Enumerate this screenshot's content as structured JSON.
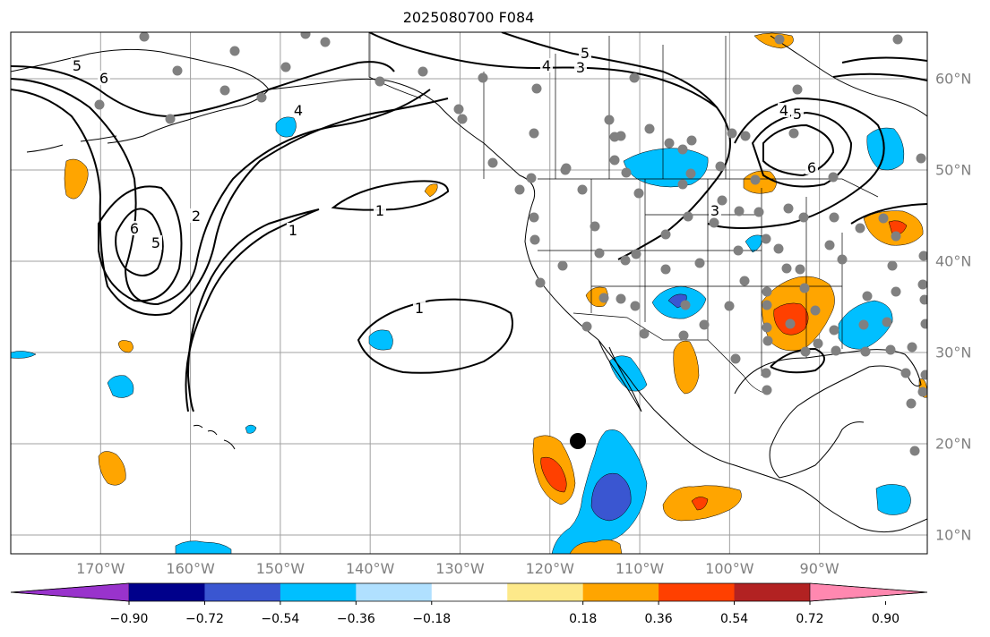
{
  "title": "2025080700 F084",
  "map": {
    "projection": "PlateCarree",
    "lon_range": [
      -180,
      -78
    ],
    "lat_range": [
      8,
      65
    ],
    "lon_labels": [
      "170°W",
      "160°W",
      "150°W",
      "140°W",
      "130°W",
      "120°W",
      "110°W",
      "100°W",
      "90°W"
    ],
    "lat_labels": [
      "60°N",
      "50°N",
      "40°N",
      "30°N",
      "20°N",
      "10°N"
    ],
    "gridlines": true,
    "contour_labels": [
      "5",
      "6",
      "4",
      "2",
      "6",
      "5",
      "1",
      "1",
      "1",
      "3",
      "4",
      "5",
      "4",
      "5",
      "6",
      "3"
    ],
    "colors": {
      "positive_light": "#fde98a",
      "positive_orange": "#ffa500",
      "positive_red": "#ff4000",
      "negative_light": "#b0e0ff",
      "negative_blue": "#00bfff",
      "negative_dark": "#3a56d1",
      "station_dots": "#808080",
      "marker": "#000000"
    }
  },
  "colorbar": {
    "tick_labels": [
      "−0.90",
      "−0.72",
      "−0.54",
      "−0.36",
      "−0.18",
      "0.18",
      "0.36",
      "0.54",
      "0.72",
      "0.90"
    ],
    "tick_values": [
      -0.9,
      -0.72,
      -0.54,
      -0.36,
      -0.18,
      0.18,
      0.36,
      0.54,
      0.72,
      0.9
    ],
    "extend": "both",
    "colors": [
      "#9933cc",
      "#00008b",
      "#3a56d1",
      "#00bfff",
      "#b0e0ff",
      "#ffffff",
      "#fde98a",
      "#ffa500",
      "#ff4000",
      "#b22222",
      "#ff88b0"
    ]
  }
}
